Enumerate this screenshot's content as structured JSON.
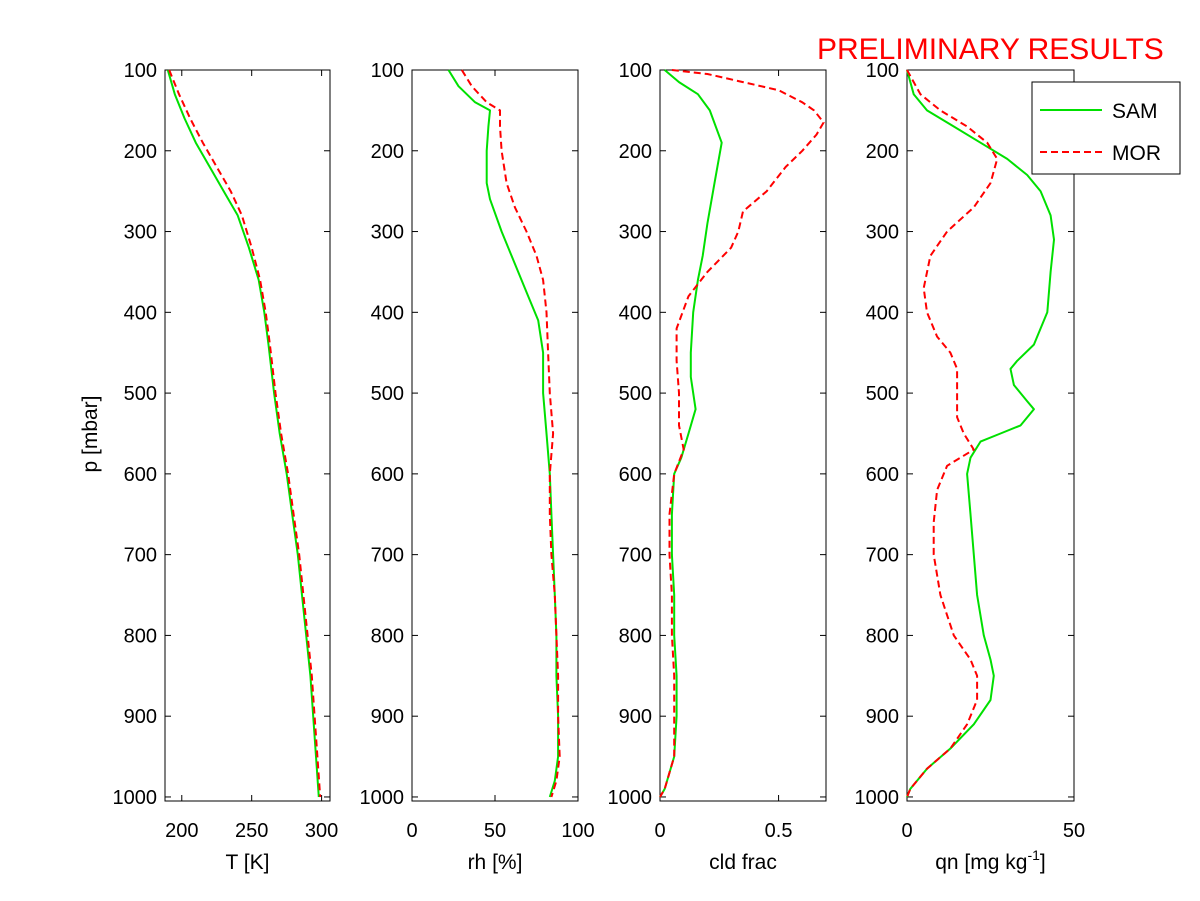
{
  "banner": "PRELIMINARY RESULTS",
  "y_axis_label": "p [mbar]",
  "legend": [
    {
      "name": "SAM",
      "color": "#00e000",
      "dash": "solid"
    },
    {
      "name": "MOR",
      "color": "#ff0000",
      "dash": "dashed"
    }
  ],
  "chart_data": [
    {
      "type": "line",
      "xlabel": "T [K]",
      "ylabel": "p [mbar]",
      "xlim": [
        188,
        306
      ],
      "ylim": [
        1005,
        100
      ],
      "y_reversed": true,
      "xticks": [
        200,
        250,
        300
      ],
      "yticks": [
        100,
        200,
        300,
        400,
        500,
        600,
        700,
        800,
        900,
        1000
      ],
      "grid": false,
      "series": [
        {
          "name": "SAM",
          "color": "#00e000",
          "dash": "solid",
          "points": [
            [
              190,
              100
            ],
            [
              195,
              130
            ],
            [
              202,
              160
            ],
            [
              210,
              190
            ],
            [
              220,
              220
            ],
            [
              230,
              250
            ],
            [
              240,
              280
            ],
            [
              248,
              320
            ],
            [
              255,
              360
            ],
            [
              259,
              400
            ],
            [
              262,
              440
            ],
            [
              266,
              500
            ],
            [
              270,
              550
            ],
            [
              275,
              600
            ],
            [
              279,
              650
            ],
            [
              283,
              700
            ],
            [
              286,
              750
            ],
            [
              289,
              800
            ],
            [
              292,
              850
            ],
            [
              294,
              900
            ],
            [
              296,
              950
            ],
            [
              298,
              1000
            ]
          ]
        },
        {
          "name": "MOR",
          "color": "#ff0000",
          "dash": "dashed",
          "points": [
            [
              191,
              100
            ],
            [
              198,
              130
            ],
            [
              206,
              160
            ],
            [
              215,
              190
            ],
            [
              225,
              220
            ],
            [
              235,
              250
            ],
            [
              243,
              280
            ],
            [
              250,
              320
            ],
            [
              256,
              360
            ],
            [
              260,
              400
            ],
            [
              263,
              440
            ],
            [
              267,
              500
            ],
            [
              271,
              550
            ],
            [
              276,
              600
            ],
            [
              280,
              650
            ],
            [
              284,
              700
            ],
            [
              287,
              750
            ],
            [
              290,
              800
            ],
            [
              293,
              850
            ],
            [
              295,
              900
            ],
            [
              297,
              950
            ],
            [
              299,
              1000
            ]
          ]
        }
      ]
    },
    {
      "type": "line",
      "xlabel": "rh [%]",
      "ylabel": "",
      "xlim": [
        0,
        100
      ],
      "ylim": [
        1005,
        100
      ],
      "y_reversed": true,
      "xticks": [
        0,
        50,
        100
      ],
      "yticks": [
        100,
        200,
        300,
        400,
        500,
        600,
        700,
        800,
        900,
        1000
      ],
      "grid": false,
      "series": [
        {
          "name": "SAM",
          "color": "#00e000",
          "dash": "solid",
          "points": [
            [
              22,
              100
            ],
            [
              28,
              120
            ],
            [
              38,
              140
            ],
            [
              47,
              150
            ],
            [
              46,
              170
            ],
            [
              45,
              200
            ],
            [
              45,
              240
            ],
            [
              47,
              260
            ],
            [
              54,
              300
            ],
            [
              62,
              340
            ],
            [
              70,
              380
            ],
            [
              76,
              410
            ],
            [
              79,
              450
            ],
            [
              79,
              500
            ],
            [
              81,
              550
            ],
            [
              83,
              600
            ],
            [
              84,
              650
            ],
            [
              85,
              700
            ],
            [
              86,
              750
            ],
            [
              87,
              800
            ],
            [
              87,
              850
            ],
            [
              88,
              900
            ],
            [
              88,
              950
            ],
            [
              86,
              980
            ],
            [
              83,
              1000
            ]
          ]
        },
        {
          "name": "MOR",
          "color": "#ff0000",
          "dash": "dashed",
          "points": [
            [
              30,
              100
            ],
            [
              36,
              120
            ],
            [
              45,
              140
            ],
            [
              53,
              150
            ],
            [
              53,
              170
            ],
            [
              54,
              200
            ],
            [
              57,
              240
            ],
            [
              62,
              270
            ],
            [
              69,
              300
            ],
            [
              75,
              330
            ],
            [
              79,
              360
            ],
            [
              81,
              400
            ],
            [
              82,
              450
            ],
            [
              83,
              500
            ],
            [
              85,
              550
            ],
            [
              83,
              600
            ],
            [
              83,
              650
            ],
            [
              84,
              700
            ],
            [
              86,
              750
            ],
            [
              87,
              800
            ],
            [
              88,
              850
            ],
            [
              88,
              900
            ],
            [
              89,
              950
            ],
            [
              87,
              980
            ],
            [
              84,
              1000
            ]
          ]
        }
      ]
    },
    {
      "type": "line",
      "xlabel": "cld frac",
      "ylabel": "",
      "xlim": [
        0,
        0.7
      ],
      "ylim": [
        1005,
        100
      ],
      "y_reversed": true,
      "xticks": [
        0,
        0.5
      ],
      "yticks": [
        100,
        200,
        300,
        400,
        500,
        600,
        700,
        800,
        900,
        1000
      ],
      "grid": false,
      "series": [
        {
          "name": "SAM",
          "color": "#00e000",
          "dash": "solid",
          "points": [
            [
              0.02,
              100
            ],
            [
              0.08,
              115
            ],
            [
              0.16,
              130
            ],
            [
              0.21,
              150
            ],
            [
              0.26,
              190
            ],
            [
              0.23,
              240
            ],
            [
              0.2,
              290
            ],
            [
              0.18,
              330
            ],
            [
              0.16,
              360
            ],
            [
              0.14,
              400
            ],
            [
              0.13,
              450
            ],
            [
              0.13,
              480
            ],
            [
              0.15,
              520
            ],
            [
              0.12,
              550
            ],
            [
              0.09,
              580
            ],
            [
              0.06,
              600
            ],
            [
              0.05,
              650
            ],
            [
              0.05,
              700
            ],
            [
              0.06,
              750
            ],
            [
              0.06,
              800
            ],
            [
              0.07,
              850
            ],
            [
              0.07,
              900
            ],
            [
              0.06,
              950
            ],
            [
              0.02,
              990
            ],
            [
              0,
              1000
            ]
          ]
        },
        {
          "name": "MOR",
          "color": "#ff0000",
          "dash": "dashed",
          "points": [
            [
              0.05,
              100
            ],
            [
              0.2,
              105
            ],
            [
              0.35,
              115
            ],
            [
              0.5,
              125
            ],
            [
              0.6,
              140
            ],
            [
              0.65,
              150
            ],
            [
              0.69,
              165
            ],
            [
              0.66,
              180
            ],
            [
              0.6,
              200
            ],
            [
              0.53,
              220
            ],
            [
              0.45,
              250
            ],
            [
              0.35,
              275
            ],
            [
              0.33,
              300
            ],
            [
              0.3,
              320
            ],
            [
              0.2,
              350
            ],
            [
              0.12,
              380
            ],
            [
              0.07,
              420
            ],
            [
              0.07,
              460
            ],
            [
              0.08,
              500
            ],
            [
              0.08,
              540
            ],
            [
              0.1,
              570
            ],
            [
              0.06,
              600
            ],
            [
              0.04,
              650
            ],
            [
              0.04,
              700
            ],
            [
              0.05,
              750
            ],
            [
              0.05,
              800
            ],
            [
              0.06,
              850
            ],
            [
              0.06,
              900
            ],
            [
              0.06,
              950
            ],
            [
              0.02,
              990
            ],
            [
              0,
              1000
            ]
          ]
        }
      ]
    },
    {
      "type": "line",
      "xlabel": "qn [mg kg",
      "xlabel_sup": "-1",
      "xlabel_end": "]",
      "ylabel": "",
      "xlim": [
        0,
        50
      ],
      "ylim": [
        1005,
        100
      ],
      "y_reversed": true,
      "xticks": [
        0,
        50
      ],
      "yticks": [
        100,
        200,
        300,
        400,
        500,
        600,
        700,
        800,
        900,
        1000
      ],
      "grid": false,
      "series": [
        {
          "name": "SAM",
          "color": "#00e000",
          "dash": "solid",
          "points": [
            [
              0,
              100
            ],
            [
              2,
              130
            ],
            [
              6,
              150
            ],
            [
              14,
              170
            ],
            [
              22,
              190
            ],
            [
              30,
              210
            ],
            [
              36,
              230
            ],
            [
              40,
              250
            ],
            [
              43,
              280
            ],
            [
              44,
              310
            ],
            [
              43,
              350
            ],
            [
              42,
              400
            ],
            [
              38,
              440
            ],
            [
              33,
              460
            ],
            [
              31,
              470
            ],
            [
              32,
              490
            ],
            [
              36,
              510
            ],
            [
              38,
              520
            ],
            [
              34,
              540
            ],
            [
              28,
              550
            ],
            [
              22,
              560
            ],
            [
              19,
              580
            ],
            [
              18,
              600
            ],
            [
              19,
              650
            ],
            [
              20,
              700
            ],
            [
              21,
              750
            ],
            [
              23,
              800
            ],
            [
              25,
              830
            ],
            [
              26,
              850
            ],
            [
              25,
              880
            ],
            [
              20,
              910
            ],
            [
              13,
              940
            ],
            [
              6,
              965
            ],
            [
              1,
              990
            ],
            [
              0,
              1000
            ]
          ]
        },
        {
          "name": "MOR",
          "color": "#ff0000",
          "dash": "dashed",
          "points": [
            [
              0,
              100
            ],
            [
              4,
              130
            ],
            [
              10,
              150
            ],
            [
              18,
              170
            ],
            [
              24,
              190
            ],
            [
              27,
              210
            ],
            [
              25,
              240
            ],
            [
              20,
              270
            ],
            [
              12,
              300
            ],
            [
              7,
              330
            ],
            [
              5,
              370
            ],
            [
              6,
              400
            ],
            [
              9,
              430
            ],
            [
              13,
              450
            ],
            [
              15,
              470
            ],
            [
              15,
              500
            ],
            [
              15,
              530
            ],
            [
              17,
              550
            ],
            [
              20,
              570
            ],
            [
              16,
              580
            ],
            [
              12,
              590
            ],
            [
              9,
              620
            ],
            [
              8,
              660
            ],
            [
              8,
              700
            ],
            [
              10,
              750
            ],
            [
              14,
              800
            ],
            [
              19,
              830
            ],
            [
              21,
              850
            ],
            [
              21,
              880
            ],
            [
              18,
              910
            ],
            [
              13,
              940
            ],
            [
              6,
              965
            ],
            [
              1,
              990
            ],
            [
              0,
              1000
            ]
          ]
        }
      ]
    }
  ]
}
